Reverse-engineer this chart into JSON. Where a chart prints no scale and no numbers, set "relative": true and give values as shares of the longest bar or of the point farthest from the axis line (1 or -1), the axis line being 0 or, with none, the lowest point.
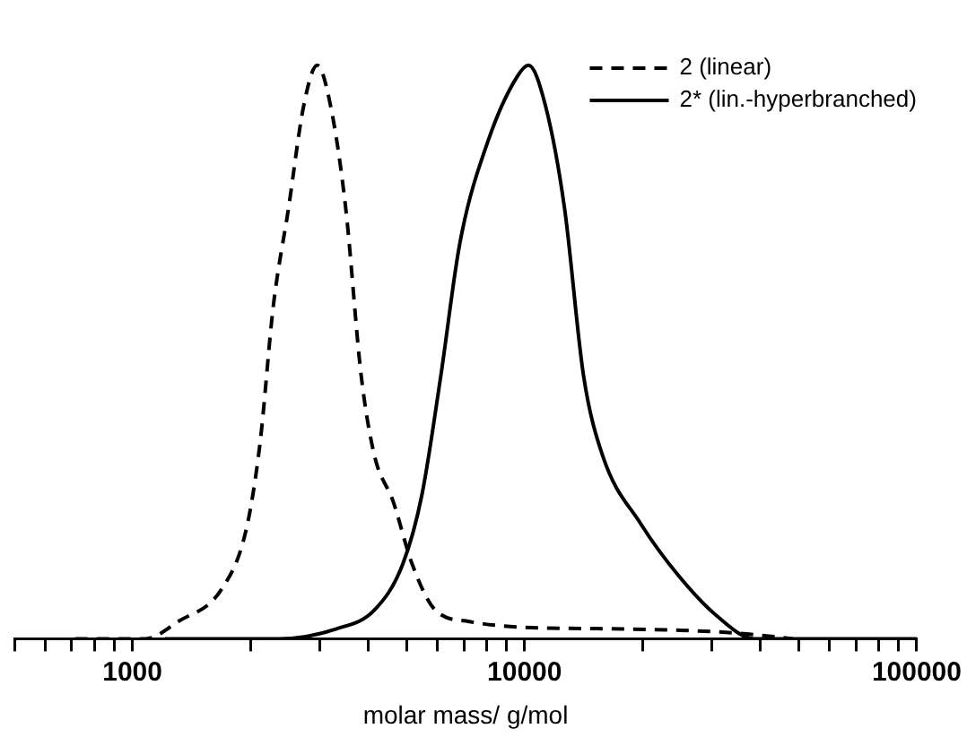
{
  "chart_data": {
    "type": "line",
    "relative": true,
    "log": "x",
    "xlabel": "molar mass/ g/mol",
    "xlim": [
      500,
      100000
    ],
    "xticks": [
      {
        "value": 500,
        "label": null
      },
      {
        "value": 600,
        "label": null
      },
      {
        "value": 700,
        "label": null
      },
      {
        "value": 800,
        "label": null
      },
      {
        "value": 900,
        "label": null
      },
      1000,
      {
        "value": 2000,
        "label": null
      },
      {
        "value": 3000,
        "label": null
      },
      {
        "value": 4000,
        "label": null
      },
      {
        "value": 5000,
        "label": null
      },
      {
        "value": 6000,
        "label": null
      },
      {
        "value": 7000,
        "label": null
      },
      {
        "value": 8000,
        "label": null
      },
      {
        "value": 9000,
        "label": null
      },
      10000,
      {
        "value": 20000,
        "label": null
      },
      {
        "value": 30000,
        "label": null
      },
      {
        "value": 40000,
        "label": null
      },
      {
        "value": 50000,
        "label": null
      },
      {
        "value": 60000,
        "label": null
      },
      {
        "value": 70000,
        "label": null
      },
      {
        "value": 80000,
        "label": null
      },
      {
        "value": 90000,
        "label": null
      },
      100000
    ],
    "grid": false,
    "legend": "top right",
    "marker": "none",
    "series": [
      {
        "name": "2 (linear)",
        "color": "#000000",
        "line_style": "dashed",
        "x": [
          714,
          1080,
          1307,
          1690,
          1950,
          2115,
          2287,
          2500,
          2735,
          2960,
          3200,
          3500,
          3830,
          4140,
          4620,
          5170,
          5920,
          7230,
          10000,
          18300,
          34600,
          48300
        ],
        "values": [
          0,
          0,
          0.03,
          0.087,
          0.19,
          0.34,
          0.58,
          0.75,
          0.93,
          1,
          0.93,
          0.75,
          0.46,
          0.32,
          0.24,
          0.13,
          0.05,
          0.03,
          0.02,
          0.017,
          0.01,
          0
        ]
      },
      {
        "name": "2* (lin.-hyperbranched)",
        "color": "#000000",
        "line_style": "solid",
        "x": [
          1210,
          2360,
          3300,
          4140,
          4890,
          5470,
          6120,
          6840,
          8090,
          9570,
          10240,
          11300,
          12650,
          14130,
          15800,
          19800,
          24700,
          30900,
          38600,
          100000
        ],
        "values": [
          0,
          0,
          0.017,
          0.05,
          0.13,
          0.25,
          0.46,
          0.69,
          0.87,
          0.98,
          1,
          0.93,
          0.75,
          0.46,
          0.32,
          0.2,
          0.11,
          0.04,
          0,
          0
        ]
      }
    ]
  }
}
